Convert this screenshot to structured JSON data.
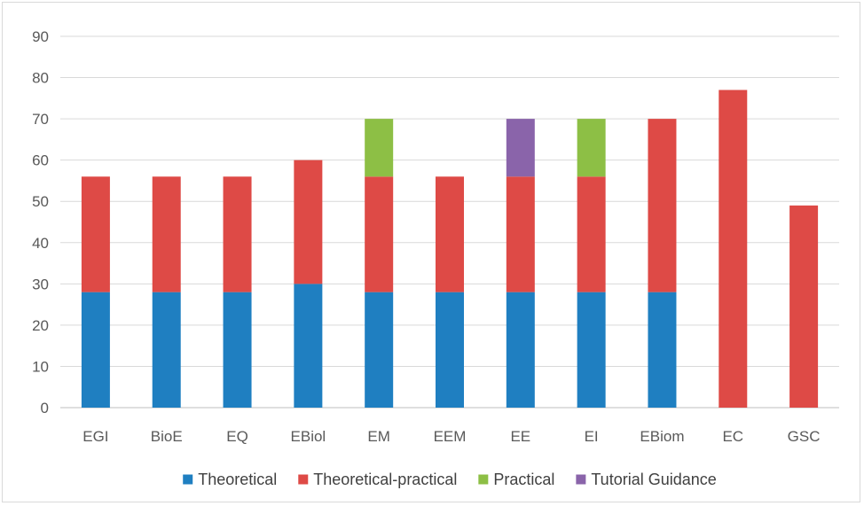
{
  "chart_data": {
    "type": "bar",
    "stacked": true,
    "categories": [
      "EGI",
      "BioE",
      "EQ",
      "EBiol",
      "EM",
      "EEM",
      "EE",
      "EI",
      "EBiom",
      "EC",
      "GSC"
    ],
    "series": [
      {
        "name": "Theoretical",
        "color": "#1f7fc1",
        "values": [
          28,
          28,
          28,
          30,
          28,
          28,
          28,
          28,
          28,
          0,
          0
        ]
      },
      {
        "name": "Theoretical-practical",
        "color": "#de4a46",
        "values": [
          28,
          28,
          28,
          30,
          28,
          28,
          28,
          28,
          42,
          77,
          49
        ]
      },
      {
        "name": "Practical",
        "color": "#8dbf45",
        "values": [
          0,
          0,
          0,
          0,
          14,
          0,
          0,
          14,
          0,
          0,
          0
        ]
      },
      {
        "name": "Tutorial Guidance",
        "color": "#8a64aa",
        "values": [
          0,
          0,
          0,
          0,
          0,
          0,
          14,
          0,
          0,
          0,
          0
        ]
      }
    ],
    "ylim": [
      0,
      90
    ],
    "yticks": [
      "0",
      "10",
      "20",
      "30",
      "40",
      "50",
      "60",
      "70",
      "80",
      "90"
    ],
    "grid": true,
    "legend_position": "bottom",
    "title": "",
    "xlabel": "",
    "ylabel": ""
  }
}
